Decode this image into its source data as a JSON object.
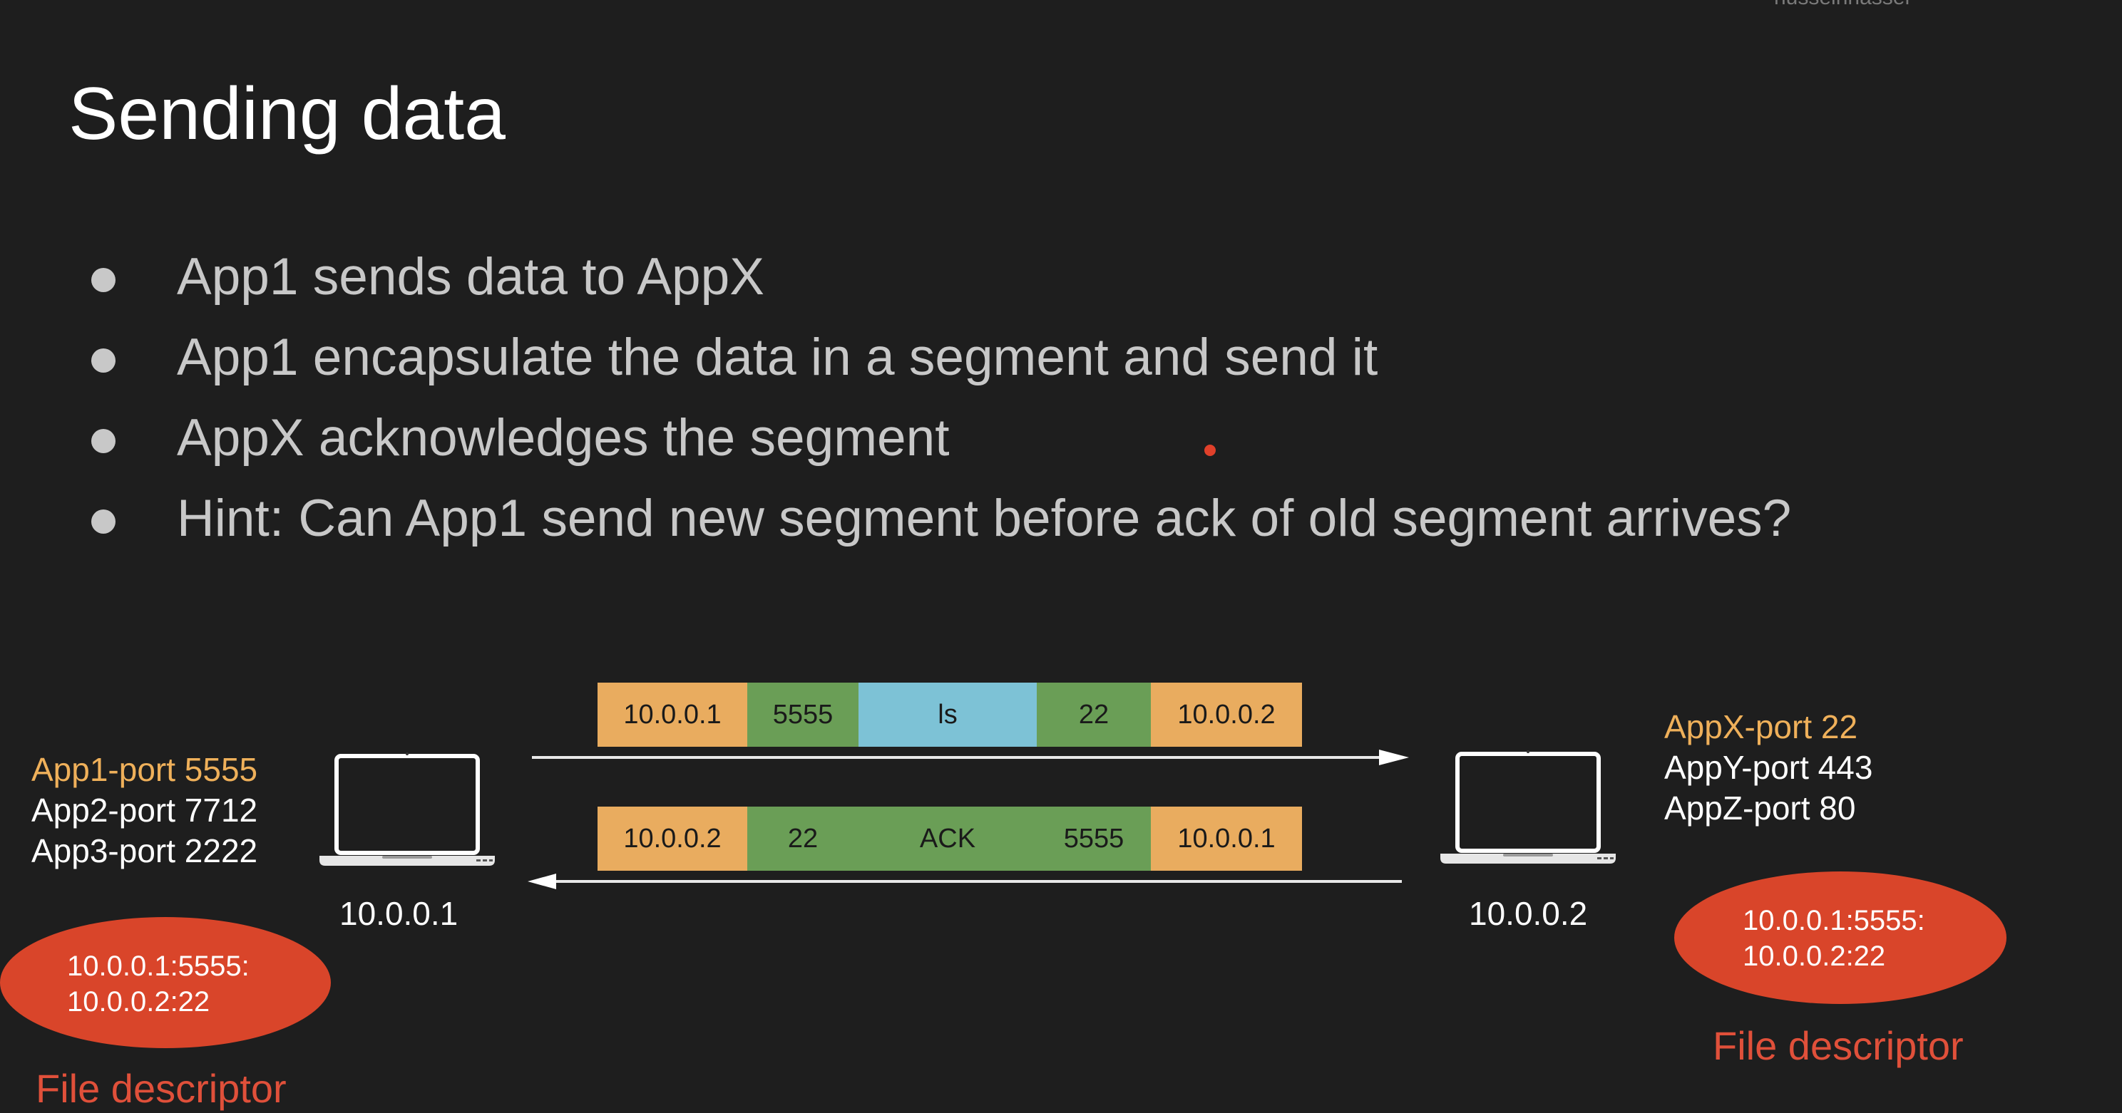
{
  "watermark": "husseinnasser",
  "title": "Sending data",
  "bullets": [
    "App1 sends data to AppX",
    "App1 encapsulate the data in a segment and send it",
    "AppX acknowledges the segment",
    "Hint: Can App1 send new segment before ack of old segment arrives?"
  ],
  "left_host": {
    "ports": [
      "App1-port 5555",
      "App2-port 7712",
      "App3-port 2222"
    ],
    "ip": "10.0.0.1",
    "fd_line1": "10.0.0.1:5555:",
    "fd_line2": "10.0.0.2:22",
    "fd_label": "File descriptor"
  },
  "right_host": {
    "ports": [
      "AppX-port 22",
      "AppY-port 443",
      "AppZ-port 80"
    ],
    "ip": "10.0.0.2",
    "fd_line1": "10.0.0.1:5555:",
    "fd_line2": "10.0.0.2:22",
    "fd_label": "File descriptor"
  },
  "segment_out": [
    "10.0.0.1",
    "5555",
    "ls",
    "22",
    "10.0.0.2"
  ],
  "segment_ack": [
    "10.0.0.2",
    "22",
    "ACK",
    "5555",
    "10.0.0.1"
  ],
  "colors": {
    "background": "#1e1e1e",
    "highlight": "#efb05a",
    "ip_cell": "#e9ac5f",
    "port_cell": "#6a9e56",
    "data_cell": "#7dc2d6",
    "file_descriptor": "#d9452a"
  }
}
